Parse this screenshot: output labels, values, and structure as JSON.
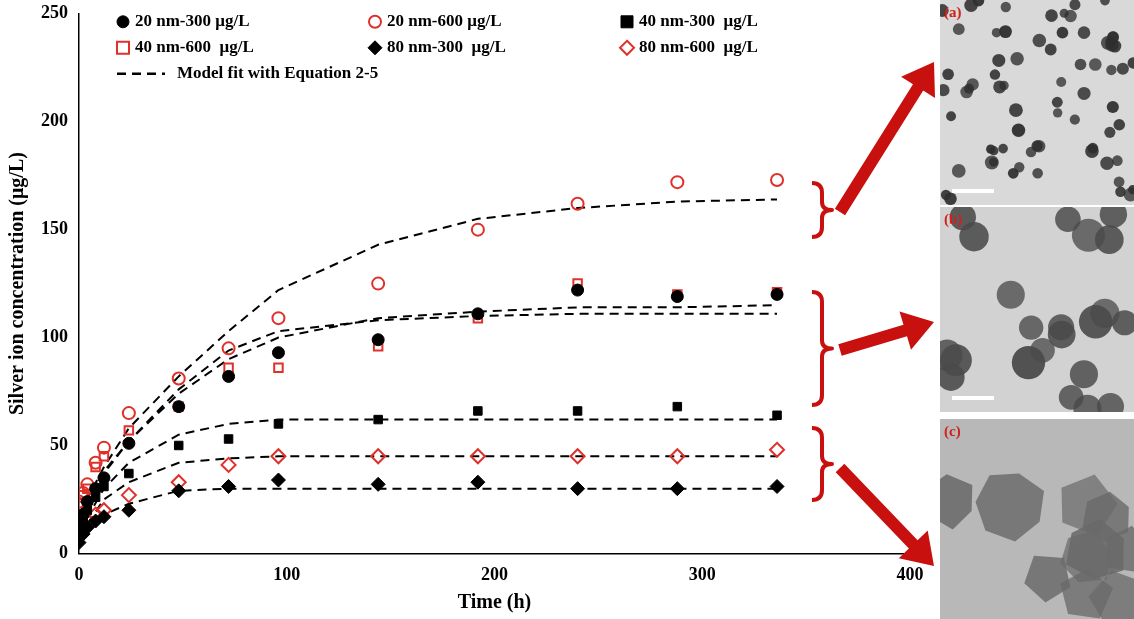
{
  "chart_data": {
    "type": "scatter",
    "x_label": "Time (h)",
    "y_label": "Silver ion concentration (μg/L)",
    "xlim": [
      0,
      400
    ],
    "xticks": [
      0,
      100,
      200,
      300,
      400
    ],
    "ylim": [
      0,
      250
    ],
    "yticks": [
      0,
      50,
      100,
      150,
      200,
      250
    ],
    "grid": false,
    "legend": "upper left",
    "x": [
      0,
      2,
      4,
      8,
      12,
      24,
      48,
      72,
      96,
      144,
      192,
      240,
      288,
      336
    ],
    "series": [
      {
        "name": "20 nm-300 μg/L",
        "color": "#000000",
        "marker": "circle",
        "values": [
          12,
          18,
          24,
          30,
          35,
          51,
          68,
          82,
          93,
          99,
          111,
          122,
          119,
          120
        ]
      },
      {
        "name": "20 nm-600 μg/L",
        "color": "#e0302a",
        "marker": "open_circle",
        "values": [
          24,
          28,
          32,
          42,
          49,
          65,
          81,
          95,
          109,
          125,
          150,
          162,
          172,
          173
        ]
      },
      {
        "name": "40 nm-300  μg/L",
        "color": "#000000",
        "marker": "square",
        "values": [
          8,
          15,
          20,
          26,
          31,
          37,
          50,
          53,
          60,
          62,
          66,
          66,
          68,
          64
        ]
      },
      {
        "name": "40 nm-600  μg/L",
        "color": "#e0302a",
        "marker": "open_square",
        "values": [
          22,
          27,
          30,
          40,
          45,
          57,
          68,
          86,
          86,
          96,
          109,
          125,
          120,
          121
        ]
      },
      {
        "name": "80 nm-300  μg/L",
        "color": "#000000",
        "marker": "diamond",
        "values": [
          5,
          9,
          12,
          15,
          17,
          20,
          29,
          31,
          34,
          32,
          33,
          30,
          30,
          31
        ]
      },
      {
        "name": "80 nm-600  μg/L",
        "color": "#e0302a",
        "marker": "open_diamond",
        "values": [
          10,
          13,
          15,
          18,
          20,
          27,
          33,
          41,
          45,
          45,
          45,
          45,
          45,
          48
        ]
      },
      {
        "name": "Model fit with Equation 2-5",
        "color": "#000000",
        "type": "line",
        "marker": "none",
        "line_style": "dashed",
        "x": [
          0,
          12,
          24,
          48,
          72,
          96,
          144,
          192,
          240,
          288,
          336,
          336,
          0,
          12,
          24,
          48,
          72,
          96,
          144,
          192,
          240,
          288,
          336,
          336,
          0,
          12,
          24,
          48,
          72,
          96,
          144,
          192,
          240,
          288,
          336,
          336,
          0,
          12,
          24,
          48,
          72,
          96,
          144,
          192,
          240,
          288,
          336,
          336,
          0,
          12,
          24,
          48,
          72,
          96,
          144,
          192,
          240,
          288,
          336,
          336,
          0,
          12,
          24,
          48,
          72,
          96,
          144,
          192,
          240,
          288,
          336
        ],
        "values": [
          18,
          40,
          58,
          82,
          103,
          122,
          143,
          155,
          160,
          163,
          164,
          null,
          15,
          38,
          52,
          74,
          90,
          100,
          109,
          112,
          114,
          114,
          115,
          null,
          15,
          37,
          52,
          76,
          94,
          103,
          108,
          110,
          111,
          111,
          111,
          null,
          10,
          30,
          42,
          55,
          60,
          62,
          62,
          62,
          62,
          62,
          62,
          null,
          8,
          25,
          33,
          42,
          44,
          45,
          45,
          45,
          45,
          45,
          45,
          null,
          5,
          18,
          23,
          29,
          30,
          30,
          30,
          30,
          30,
          30,
          30
        ]
      }
    ]
  },
  "images": [
    {
      "label": "(a)"
    },
    {
      "label": "(b)"
    },
    {
      "label": "(c)"
    }
  ]
}
